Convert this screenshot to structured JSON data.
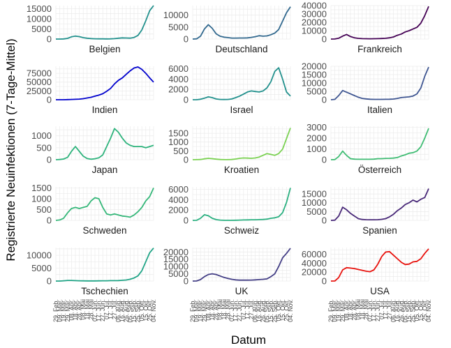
{
  "chart_data": {
    "type": "line",
    "ylabel": "Registrierte Neuinfektionen (7-Tage-Mittel)",
    "xlabel": "Datum",
    "x_tick_labels": [
      "29. Feb.",
      "09. Mär.",
      "19. Mär.",
      "29. Mär.",
      "08. Apr.",
      "18. Apr.",
      "28. Apr.",
      "08. Mai",
      "18. Mai",
      "28. Mai",
      "07. Jun.",
      "17. Jun.",
      "27. Jun.",
      "07. Jul.",
      "17. Jul.",
      "27. Jul.",
      "06. Aug.",
      "16. Aug.",
      "26. Aug.",
      "05. Sep.",
      "15. Sep.",
      "25. Sep.",
      "05. Okt.",
      "15. Okt.",
      "25. Okt.",
      "04. Nov."
    ],
    "panels": [
      {
        "name": "Belgien",
        "color": "#21908c",
        "ymax": 16500,
        "yticks": [
          0,
          5000,
          10000,
          15000
        ],
        "values": [
          0,
          10,
          60,
          350,
          1100,
          1450,
          1200,
          700,
          400,
          250,
          150,
          100,
          90,
          85,
          110,
          200,
          400,
          600,
          500,
          450,
          800,
          1800,
          4500,
          9000,
          14000,
          16500
        ]
      },
      {
        "name": "Deutschland",
        "color": "#31688e",
        "ymax": 14000,
        "yticks": [
          0,
          5000,
          10000
        ],
        "values": [
          0,
          100,
          1200,
          4200,
          6000,
          4500,
          2200,
          1200,
          800,
          600,
          400,
          400,
          450,
          450,
          500,
          700,
          1000,
          1400,
          1200,
          1300,
          1800,
          2500,
          4000,
          7500,
          11000,
          13500
        ]
      },
      {
        "name": "Frankreich",
        "color": "#440154",
        "ymax": 40000,
        "yticks": [
          0,
          10000,
          20000,
          30000,
          40000
        ],
        "values": [
          0,
          100,
          1000,
          3500,
          5500,
          3000,
          1500,
          800,
          500,
          400,
          350,
          450,
          500,
          700,
          900,
          1500,
          2500,
          4500,
          6000,
          8500,
          10000,
          12000,
          14000,
          19000,
          28000,
          39000
        ]
      },
      {
        "name": "Indien",
        "color": "#0000cd",
        "ymax": 95000,
        "yticks": [
          0,
          25000,
          50000,
          75000
        ],
        "values": [
          0,
          5,
          50,
          300,
          700,
          1200,
          1800,
          3000,
          5000,
          7000,
          10000,
          13000,
          17000,
          24000,
          32000,
          45000,
          55000,
          62000,
          72000,
          82000,
          90000,
          93000,
          86000,
          75000,
          62000,
          50000
        ]
      },
      {
        "name": "Israel",
        "color": "#21908c",
        "ymax": 6500,
        "yticks": [
          0,
          2000,
          4000,
          6000
        ],
        "values": [
          0,
          0,
          100,
          300,
          550,
          400,
          150,
          50,
          40,
          50,
          150,
          400,
          700,
          1100,
          1500,
          1700,
          1600,
          1500,
          1700,
          2300,
          3500,
          5500,
          6200,
          4000,
          1500,
          700
        ]
      },
      {
        "name": "Italien",
        "color": "#3e5591",
        "ymax": 20000,
        "yticks": [
          0,
          5000,
          10000,
          15000,
          20000
        ],
        "values": [
          0,
          200,
          2500,
          5500,
          4500,
          3500,
          2500,
          1500,
          800,
          500,
          300,
          200,
          200,
          200,
          250,
          300,
          400,
          800,
          1300,
          1500,
          1700,
          2200,
          3500,
          7000,
          14000,
          19500
        ]
      },
      {
        "name": "Japan",
        "color": "#2eb37c",
        "ymax": 1400,
        "yticks": [
          0,
          500,
          1000
        ],
        "values": [
          0,
          10,
          30,
          100,
          350,
          550,
          350,
          150,
          50,
          20,
          40,
          80,
          200,
          550,
          900,
          1300,
          1150,
          900,
          700,
          600,
          550,
          550,
          550,
          500,
          550,
          600
        ]
      },
      {
        "name": "Kroatien",
        "color": "#7ad151",
        "ymax": 1900,
        "yticks": [
          0,
          500,
          1000,
          1500
        ],
        "values": [
          0,
          2,
          10,
          50,
          80,
          60,
          30,
          10,
          5,
          3,
          10,
          40,
          80,
          100,
          90,
          80,
          100,
          150,
          250,
          350,
          300,
          250,
          350,
          600,
          1200,
          1800
        ]
      },
      {
        "name": "Österreich",
        "color": "#3fbc73",
        "ymax": 3100,
        "yticks": [
          0,
          1000,
          2000,
          3000
        ],
        "values": [
          0,
          10,
          300,
          800,
          400,
          100,
          50,
          40,
          40,
          40,
          40,
          50,
          100,
          100,
          120,
          130,
          150,
          200,
          350,
          450,
          600,
          650,
          800,
          1200,
          2000,
          2900
        ]
      },
      {
        "name": "Schweden",
        "color": "#35b779",
        "ymax": 1550,
        "yticks": [
          0,
          500,
          1000,
          1500
        ],
        "values": [
          0,
          20,
          100,
          350,
          550,
          600,
          550,
          600,
          650,
          900,
          1050,
          1000,
          600,
          300,
          250,
          300,
          250,
          200,
          180,
          150,
          250,
          400,
          600,
          900,
          1100,
          1500
        ]
      },
      {
        "name": "Schweiz",
        "color": "#29af7f",
        "ymax": 6500,
        "yticks": [
          0,
          2000,
          4000,
          6000
        ],
        "values": [
          0,
          20,
          400,
          1100,
          900,
          400,
          150,
          50,
          20,
          20,
          20,
          30,
          50,
          80,
          100,
          120,
          120,
          150,
          180,
          250,
          400,
          500,
          700,
          1500,
          3500,
          6300
        ]
      },
      {
        "name": "Spanien",
        "color": "#482878",
        "ymax": 19000,
        "yticks": [
          0,
          5000,
          10000,
          15000
        ],
        "values": [
          0,
          100,
          2500,
          7500,
          6000,
          4000,
          2500,
          1000,
          500,
          400,
          350,
          350,
          400,
          600,
          1000,
          2000,
          3500,
          5500,
          7000,
          9000,
          10000,
          11500,
          10500,
          12000,
          13000,
          18000
        ]
      },
      {
        "name": "Tschechien",
        "color": "#20a486",
        "ymax": 13000,
        "yticks": [
          0,
          5000,
          10000
        ],
        "values": [
          0,
          10,
          100,
          250,
          250,
          150,
          100,
          80,
          60,
          50,
          50,
          80,
          100,
          120,
          150,
          150,
          200,
          300,
          400,
          700,
          1200,
          2000,
          4000,
          7500,
          11000,
          12800
        ]
      },
      {
        "name": "UK",
        "color": "#433e85",
        "ymax": 23000,
        "yticks": [
          0,
          5000,
          10000,
          15000,
          20000
        ],
        "values": [
          0,
          50,
          1000,
          3000,
          4500,
          5000,
          4500,
          3500,
          2500,
          1800,
          1200,
          800,
          600,
          600,
          600,
          650,
          800,
          1000,
          1200,
          1500,
          3000,
          5000,
          10000,
          16000,
          19000,
          22500
        ]
      },
      {
        "name": "USA",
        "color": "#e8110c",
        "ymax": 75000,
        "yticks": [
          0,
          20000,
          40000,
          60000
        ],
        "values": [
          0,
          200,
          8000,
          25000,
          30000,
          29000,
          28000,
          26000,
          24000,
          22000,
          21000,
          25000,
          38000,
          55000,
          65000,
          66000,
          58000,
          50000,
          42000,
          37000,
          38000,
          43000,
          44000,
          50000,
          62000,
          72000
        ]
      }
    ]
  }
}
